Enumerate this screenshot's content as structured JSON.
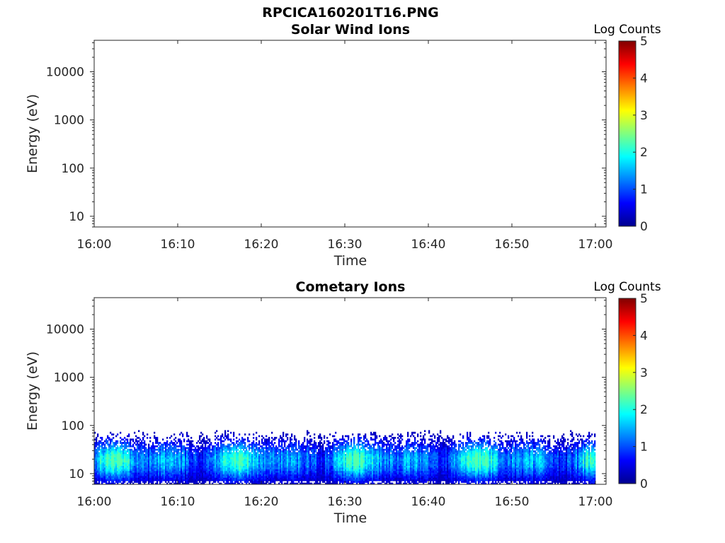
{
  "figure": {
    "title": "RPCICA160201T16.PNG"
  },
  "colorbar": {
    "title": "Log Counts",
    "ticks": [
      "0",
      "1",
      "2",
      "3",
      "4",
      "5"
    ],
    "range": [
      0,
      5
    ],
    "colormap": "jet"
  },
  "chart_data": [
    {
      "type": "heatmap",
      "title": "Solar Wind Ions",
      "xlabel": "Time",
      "ylabel": "Energy (eV)",
      "x_ticks": [
        "16:00",
        "16:10",
        "16:20",
        "16:30",
        "16:40",
        "16:50",
        "17:00"
      ],
      "x_range": [
        "16:00",
        "17:00"
      ],
      "y_scale": "log",
      "y_ticks": [
        "10",
        "100",
        "1000",
        "10000"
      ],
      "y_range_ev": [
        6,
        45000
      ],
      "colorbar": "Log Counts (0-5)",
      "signal": "none"
    },
    {
      "type": "heatmap",
      "title": "Cometary Ions",
      "xlabel": "Time",
      "ylabel": "Energy (eV)",
      "x_ticks": [
        "16:00",
        "16:10",
        "16:20",
        "16:30",
        "16:40",
        "16:50",
        "17:00"
      ],
      "x_range": [
        "16:00",
        "17:00"
      ],
      "y_scale": "log",
      "y_ticks": [
        "10",
        "100",
        "1000",
        "10000"
      ],
      "y_range_ev": [
        6,
        45000
      ],
      "colorbar": "Log Counts (0-5)",
      "signal": {
        "energy_range_ev": [
          6,
          80
        ],
        "peak_energy_ev": [
          12,
          30
        ],
        "peak_log_counts": 2.0,
        "typical_log_counts": [
          0.5,
          2.0
        ],
        "time_range": [
          "16:00",
          "17:00"
        ]
      }
    }
  ]
}
